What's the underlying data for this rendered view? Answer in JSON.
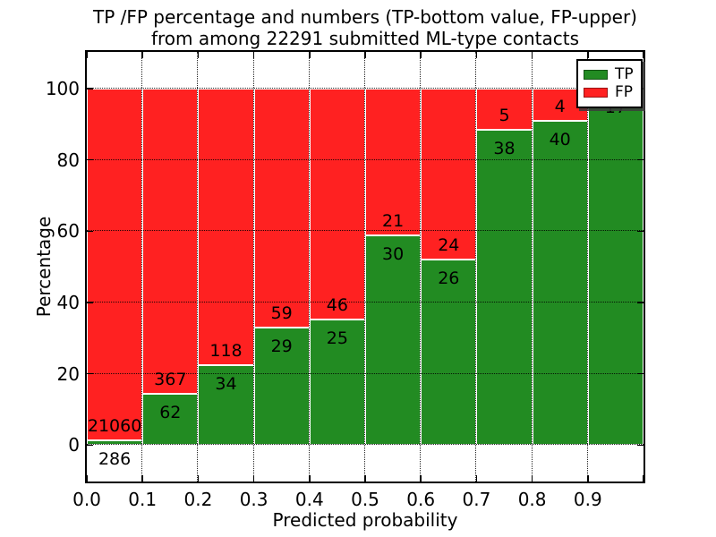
{
  "title_line1": "TP /FP percentage and numbers (TP-bottom value, FP-upper)",
  "title_line2": "from among 22291 submitted ML-type contacts",
  "axes": {
    "xlabel": "Predicted probability",
    "ylabel": "Percentage",
    "x_tick_labels": [
      "0.0",
      "0.1",
      "0.2",
      "0.3",
      "0.4",
      "0.5",
      "0.6",
      "0.7",
      "0.8",
      "0.9"
    ],
    "y_tick_labels": [
      "0",
      "20",
      "40",
      "60",
      "80",
      "100"
    ],
    "y_tick_values": [
      0,
      20,
      40,
      60,
      80,
      100
    ]
  },
  "legend": {
    "items": [
      {
        "label": "TP",
        "color": "#228b22"
      },
      {
        "label": "FP",
        "color": "#ff2121"
      }
    ]
  },
  "chart_data": {
    "type": "bar",
    "stacked": true,
    "unit": "percent",
    "title": "TP /FP percentage and numbers (TP-bottom value, FP-upper) from among 22291 submitted ML-type contacts",
    "xlabel": "Predicted probability",
    "ylabel": "Percentage",
    "xlim": [
      0.0,
      1.0
    ],
    "ylim": [
      -10.2,
      110.3
    ],
    "bin_width": 0.1,
    "grid": "dotted",
    "legend_position": "upper right",
    "total_contacts": 22291,
    "series": [
      {
        "name": "TP",
        "color": "#228b22",
        "position": "bottom"
      },
      {
        "name": "FP",
        "color": "#ff2121",
        "position": "top"
      }
    ],
    "bins": [
      {
        "x0": 0.0,
        "x1": 0.1,
        "tp": 286,
        "fp": 21060,
        "tp_pct": 1.34
      },
      {
        "x0": 0.1,
        "x1": 0.2,
        "tp": 62,
        "fp": 367,
        "tp_pct": 14.45
      },
      {
        "x0": 0.2,
        "x1": 0.3,
        "tp": 34,
        "fp": 118,
        "tp_pct": 22.37
      },
      {
        "x0": 0.3,
        "x1": 0.4,
        "tp": 29,
        "fp": 59,
        "tp_pct": 32.95
      },
      {
        "x0": 0.4,
        "x1": 0.5,
        "tp": 25,
        "fp": 46,
        "tp_pct": 35.21
      },
      {
        "x0": 0.5,
        "x1": 0.6,
        "tp": 30,
        "fp": 21,
        "tp_pct": 58.82
      },
      {
        "x0": 0.6,
        "x1": 0.7,
        "tp": 26,
        "fp": 24,
        "tp_pct": 52.0
      },
      {
        "x0": 0.7,
        "x1": 0.8,
        "tp": 38,
        "fp": 5,
        "tp_pct": 88.37
      },
      {
        "x0": 0.8,
        "x1": 0.9,
        "tp": 40,
        "fp": 4,
        "tp_pct": 90.91
      },
      {
        "x0": 0.9,
        "x1": 1.0,
        "tp": 17,
        "fp": 0,
        "tp_pct": 100.0
      }
    ]
  }
}
